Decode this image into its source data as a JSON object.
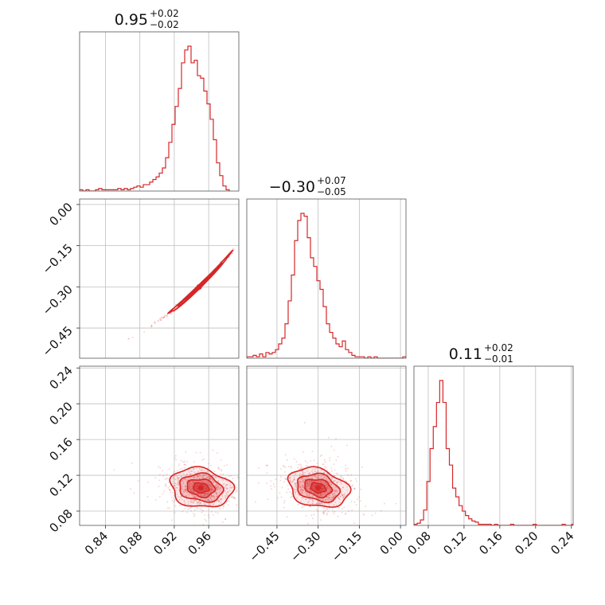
{
  "chart_data": {
    "type": "corner",
    "color": "#d62728",
    "parameters": [
      {
        "title_value": "0.95",
        "title_plus": "+0.02",
        "title_minus": "−0.02",
        "range": [
          0.81,
          0.995
        ],
        "ticks": [
          0.84,
          0.88,
          0.92,
          0.96
        ],
        "tick_labels": [
          "0.84",
          "0.88",
          "0.92",
          "0.96"
        ],
        "histogram": {
          "bin_start": 0.81,
          "bin_width": 0.0037,
          "counts": [
            1,
            0,
            1,
            0,
            0,
            1,
            2,
            1,
            1,
            1,
            1,
            1,
            2,
            1,
            2,
            1,
            2,
            3,
            4,
            3,
            5,
            5,
            7,
            9,
            11,
            14,
            18,
            26,
            38,
            52,
            66,
            80,
            100,
            110,
            113,
            100,
            102,
            90,
            88,
            78,
            68,
            56,
            40,
            22,
            12,
            4,
            1
          ]
        }
      },
      {
        "title_value": "−0.30",
        "title_plus": "+0.07",
        "title_minus": "−0.05",
        "range": [
          -0.56,
          0.02
        ],
        "ticks": [
          -0.45,
          -0.3,
          -0.15,
          0.0
        ],
        "tick_labels": [
          "−0.45",
          "−0.30",
          "−0.15",
          "0.00"
        ],
        "histogram": {
          "bin_start": -0.56,
          "bin_width": 0.0116,
          "counts": [
            1,
            1,
            2,
            1,
            3,
            1,
            4,
            3,
            4,
            6,
            10,
            14,
            24,
            40,
            58,
            82,
            96,
            101,
            99,
            84,
            70,
            64,
            54,
            48,
            36,
            24,
            18,
            14,
            10,
            8,
            12,
            6,
            4,
            2,
            1,
            1,
            1,
            0,
            1,
            0,
            1,
            0,
            0,
            0,
            0,
            0,
            0,
            0,
            0,
            1
          ]
        }
      },
      {
        "title_value": "0.11",
        "title_plus": "+0.02",
        "title_minus": "−0.01",
        "range": [
          0.064,
          0.242
        ],
        "ticks": [
          0.08,
          0.12,
          0.16,
          0.2,
          0.24
        ],
        "tick_labels": [
          "0.08",
          "0.12",
          "0.16",
          "0.20",
          "0.24"
        ],
        "histogram": {
          "bin_start": 0.064,
          "bin_width": 0.0036,
          "counts": [
            1,
            2,
            5,
            14,
            40,
            70,
            90,
            112,
            132,
            112,
            70,
            55,
            34,
            26,
            18,
            13,
            9,
            6,
            4,
            3,
            1,
            1,
            1,
            1,
            0,
            1,
            0,
            0,
            0,
            0,
            1,
            0,
            0,
            0,
            0,
            0,
            0,
            1,
            0,
            0,
            0,
            0,
            0,
            0,
            0,
            0,
            1,
            0,
            0,
            1
          ]
        }
      }
    ],
    "y_tick_labels": {
      "row1": [
        "0.00",
        "−0.15",
        "−0.30",
        "−0.45"
      ],
      "row2": [
        "0.24",
        "0.20",
        "0.16",
        "0.12",
        "0.08"
      ]
    },
    "correlations": {
      "p0_p1": {
        "mean": [
          0.949,
          -0.3
        ],
        "sd": [
          0.018,
          0.055
        ],
        "rho": 0.985
      },
      "p0_p2": {
        "mean": [
          0.951,
          0.106
        ],
        "sd": [
          0.018,
          0.011
        ],
        "rho": -0.15
      },
      "p1_p2": {
        "mean": [
          -0.3,
          0.106
        ],
        "sd": [
          0.055,
          0.011
        ],
        "rho": -0.25
      }
    },
    "grid": true
  }
}
